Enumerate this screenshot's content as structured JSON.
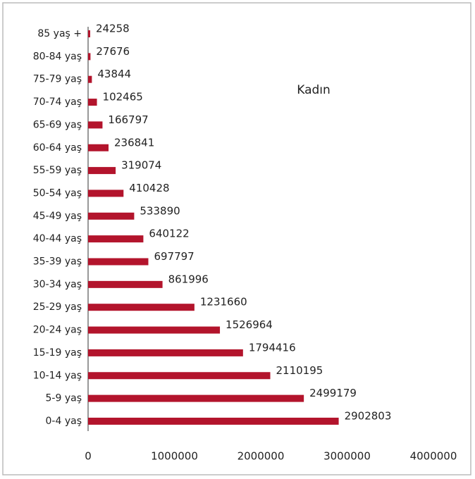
{
  "chart_data": {
    "type": "barh",
    "title": "Kadın",
    "categories": [
      "85 yaş +",
      "80-84 yaş",
      "75-79 yaş",
      "70-74 yaş",
      "65-69 yaş",
      "60-64 yaş",
      "55-59 yaş",
      "50-54 yaş",
      "45-49 yaş",
      "40-44 yaş",
      "35-39 yaş",
      "30-34 yaş",
      "25-29 yaş",
      "20-24 yaş",
      "15-19 yaş",
      "10-14 yaş",
      "5-9 yaş",
      "0-4 yaş"
    ],
    "values": [
      24258,
      27676,
      43844,
      102465,
      166797,
      236841,
      319074,
      410428,
      533890,
      640122,
      697797,
      861996,
      1231660,
      1526964,
      1794416,
      2110195,
      2499179,
      2902803
    ],
    "color": "#b3142c",
    "xlim": [
      0,
      4000000
    ],
    "xticks": [
      0,
      1000000,
      2000000,
      3000000,
      4000000
    ]
  }
}
